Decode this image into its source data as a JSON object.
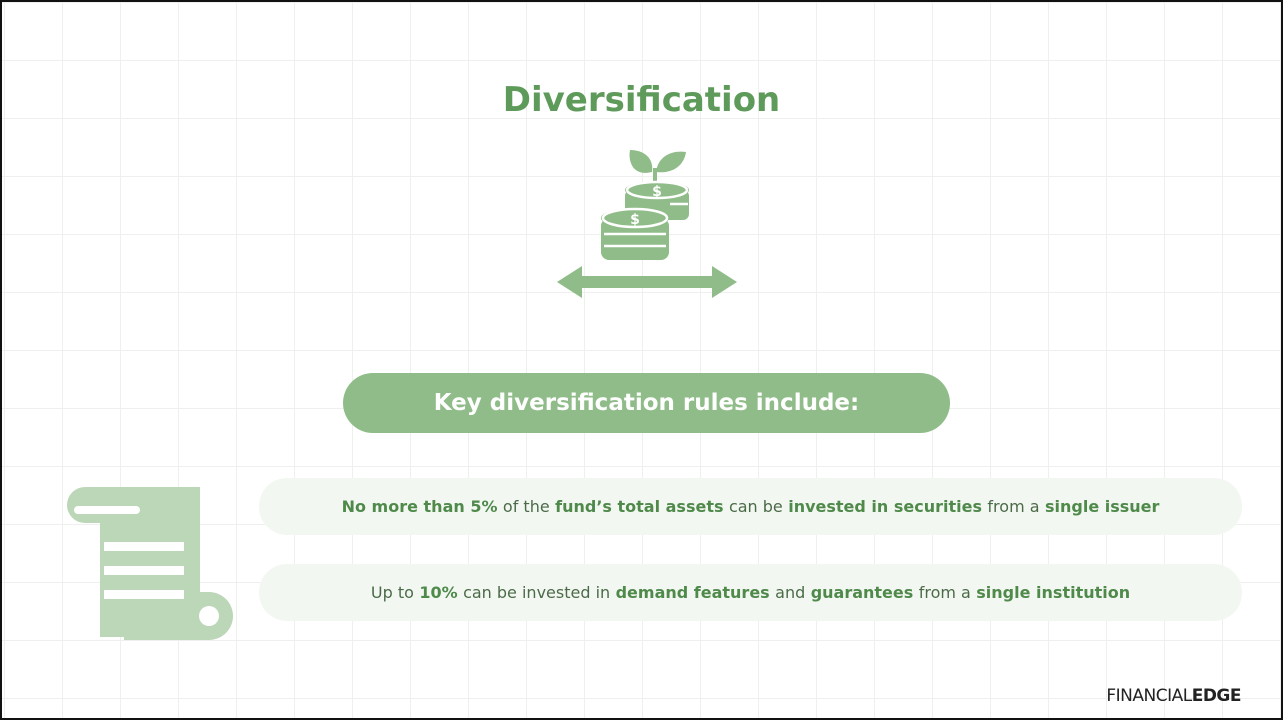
{
  "title": "Diversification",
  "banner": "Key diversification rules include:",
  "rules": [
    {
      "parts": [
        {
          "text": "No more than 5%",
          "bold": true
        },
        {
          "text": "of the",
          "bold": false
        },
        {
          "text": "fund’s total assets",
          "bold": true
        },
        {
          "text": "can be",
          "bold": false
        },
        {
          "text": "invested in securities",
          "bold": true
        },
        {
          "text": "from a",
          "bold": false
        },
        {
          "text": "single issuer",
          "bold": true
        }
      ]
    },
    {
      "parts": [
        {
          "text": "Up to",
          "bold": false
        },
        {
          "text": "10%",
          "bold": true
        },
        {
          "text": "can be invested in",
          "bold": false
        },
        {
          "text": "demand features",
          "bold": true
        },
        {
          "text": "and",
          "bold": false
        },
        {
          "text": "guarantees",
          "bold": true
        },
        {
          "text": "from a",
          "bold": false
        },
        {
          "text": "single institution",
          "bold": true
        }
      ]
    }
  ],
  "logo": {
    "light": "FINANCIAL",
    "bold": "EDGE"
  }
}
